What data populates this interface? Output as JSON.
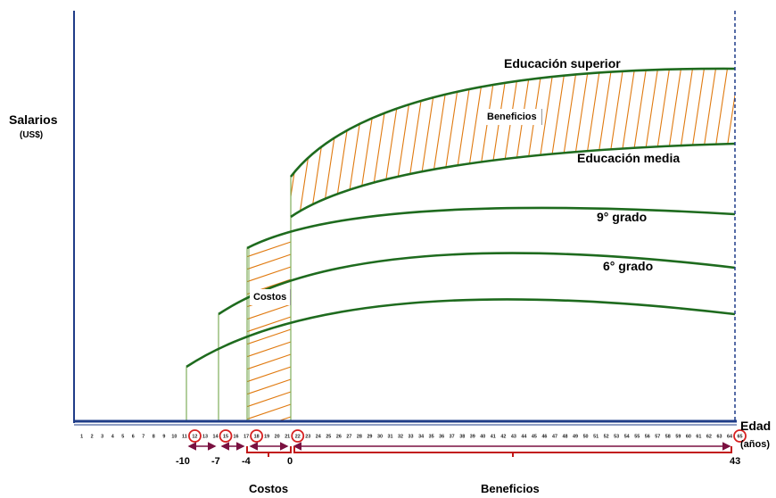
{
  "axes": {
    "y_title": "Salarios",
    "y_unit": "(US$)",
    "x_title": "Edad",
    "x_unit": "(años)"
  },
  "ages": {
    "first": 1,
    "last": 65,
    "circled": [
      12,
      15,
      18,
      22,
      65
    ]
  },
  "curves": [
    {
      "key": "superior",
      "label": "Educación superior",
      "start_age": 22
    },
    {
      "key": "media",
      "label": "Educación media",
      "start_age": 22
    },
    {
      "key": "noveno",
      "label": "9° grado",
      "start_age": 18
    },
    {
      "key": "sexto",
      "label": "6° grado",
      "start_age": 15
    },
    {
      "key": "base",
      "label": "",
      "start_age": 12
    }
  ],
  "regions": {
    "benefits_label": "Beneficios",
    "costs_label": "Costos"
  },
  "timeline": {
    "ticks": [
      "-10",
      "-7",
      "-4",
      "0",
      "43"
    ],
    "costs_label": "Costos",
    "benefits_label": "Beneficios"
  },
  "colors": {
    "curve": "#1e6b1e",
    "hatch": "#e07a10",
    "axis": "#1f3c88",
    "circle": "#d62020",
    "bracket": "#c21818",
    "arrow": "#7a1040"
  }
}
